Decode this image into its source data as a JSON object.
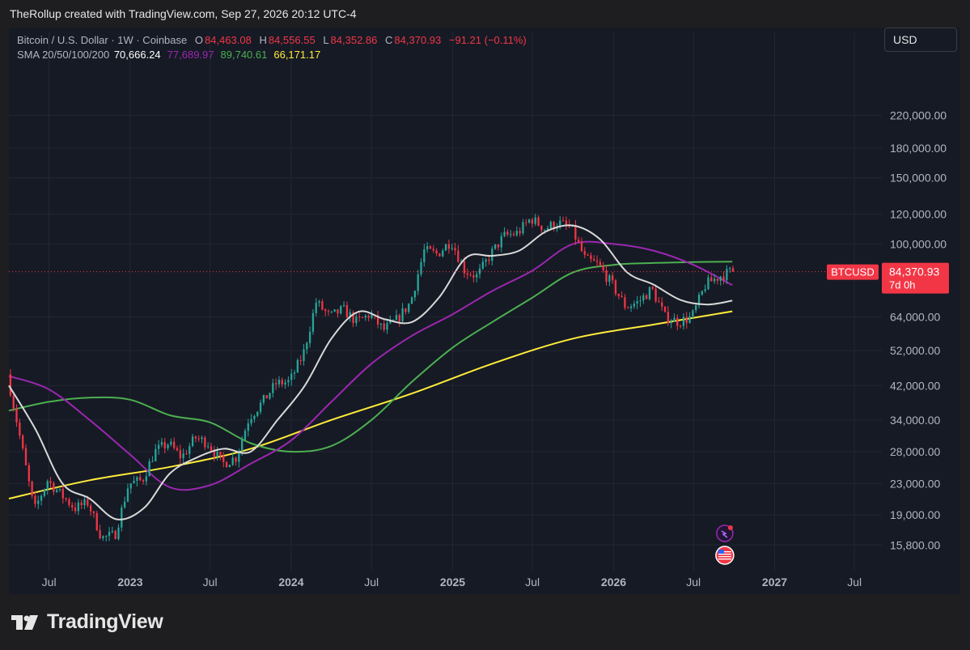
{
  "header": {
    "credit": "TheRollup created with TradingView.com, Sep 27, 2026 20:12 UTC-4"
  },
  "legend": {
    "symbol": "Bitcoin / U.S. Dollar · 1W · Coinbase",
    "o_label": "O",
    "o_value": "84,463.08",
    "h_label": "H",
    "h_value": "84,556.55",
    "l_label": "L",
    "l_value": "84,352.86",
    "c_label": "C",
    "c_value": "84,370.93",
    "change": "−91.21 (−0.11%)",
    "sma_label": "SMA 20/50/100/200",
    "sma20": "70,666.24",
    "sma50": "77,689.97",
    "sma100": "89,740.61",
    "sma200": "66,171.17"
  },
  "currency_button": "USD",
  "price_tag": {
    "symbol": "BTCUSD",
    "price": "84,370.93",
    "countdown": "7d 0h"
  },
  "brand": "TradingView",
  "colors": {
    "up": "#26a69a",
    "down": "#f23645",
    "sma20": "#d9d9d9",
    "sma50": "#9c27b0",
    "sma100": "#4caf50",
    "sma200": "#ffeb3b",
    "background": "#161a25"
  },
  "chart_data": {
    "type": "line",
    "scale": "log",
    "y_ticks": [
      "220,000.00",
      "180,000.00",
      "150,000.00",
      "120,000.00",
      "100,000.00",
      "64,000.00",
      "52,000.00",
      "42,000.00",
      "34,000.00",
      "28,000.00",
      "23,000.00",
      "19,000.00",
      "15,800.00"
    ],
    "y_tick_values": [
      220000,
      180000,
      150000,
      120000,
      100000,
      64000,
      52000,
      42000,
      34000,
      28000,
      23000,
      19000,
      15800
    ],
    "ylim": [
      13500,
      300000
    ],
    "x_ticks": [
      {
        "label": "Jul",
        "date": "2022-07-01",
        "bold": false
      },
      {
        "label": "2023",
        "date": "2023-01-01",
        "bold": true
      },
      {
        "label": "Jul",
        "date": "2023-07-01",
        "bold": false
      },
      {
        "label": "2024",
        "date": "2024-01-01",
        "bold": true
      },
      {
        "label": "Jul",
        "date": "2024-07-01",
        "bold": false
      },
      {
        "label": "2025",
        "date": "2025-01-01",
        "bold": true
      },
      {
        "label": "Jul",
        "date": "2025-07-01",
        "bold": false
      },
      {
        "label": "2026",
        "date": "2026-01-01",
        "bold": true
      },
      {
        "label": "Jul",
        "date": "2026-07-01",
        "bold": false
      },
      {
        "label": "2027",
        "date": "2027-01-01",
        "bold": true
      },
      {
        "label": "Jul",
        "date": "2027-07-01",
        "bold": false
      }
    ],
    "xlim": [
      "2022-04-01",
      "2027-09-01"
    ],
    "price_path": [
      [
        "2022-04-01",
        45000
      ],
      [
        "2022-05-01",
        30000
      ],
      [
        "2022-06-01",
        19500
      ],
      [
        "2022-07-01",
        23500
      ],
      [
        "2022-08-01",
        21500
      ],
      [
        "2022-09-01",
        19800
      ],
      [
        "2022-10-01",
        20500
      ],
      [
        "2022-11-01",
        16500
      ],
      [
        "2022-12-01",
        16800
      ],
      [
        "2023-01-01",
        23000
      ],
      [
        "2023-02-01",
        23500
      ],
      [
        "2023-03-01",
        28000
      ],
      [
        "2023-04-01",
        29500
      ],
      [
        "2023-05-01",
        27000
      ],
      [
        "2023-06-01",
        30500
      ],
      [
        "2023-07-01",
        29500
      ],
      [
        "2023-08-01",
        26000
      ],
      [
        "2023-09-01",
        27000
      ],
      [
        "2023-10-01",
        34500
      ],
      [
        "2023-11-01",
        38000
      ],
      [
        "2023-12-01",
        42500
      ],
      [
        "2024-01-01",
        43000
      ],
      [
        "2024-02-01",
        51000
      ],
      [
        "2024-03-01",
        70000
      ],
      [
        "2024-04-01",
        64000
      ],
      [
        "2024-05-01",
        67000
      ],
      [
        "2024-06-01",
        62000
      ],
      [
        "2024-07-01",
        65000
      ],
      [
        "2024-08-01",
        59000
      ],
      [
        "2024-09-01",
        63000
      ],
      [
        "2024-10-01",
        70000
      ],
      [
        "2024-11-01",
        96000
      ],
      [
        "2024-12-01",
        94000
      ],
      [
        "2025-01-01",
        102000
      ],
      [
        "2025-02-01",
        85000
      ],
      [
        "2025-03-01",
        82000
      ],
      [
        "2025-04-01",
        94000
      ],
      [
        "2025-05-01",
        105000
      ],
      [
        "2025-06-01",
        107000
      ],
      [
        "2025-07-01",
        117000
      ],
      [
        "2025-08-01",
        110000
      ],
      [
        "2025-09-01",
        114000
      ],
      [
        "2025-10-01",
        110000
      ],
      [
        "2025-11-01",
        91000
      ],
      [
        "2025-12-01",
        88000
      ],
      [
        "2026-01-01",
        78000
      ],
      [
        "2026-02-01",
        68000
      ],
      [
        "2026-03-01",
        70000
      ],
      [
        "2026-04-01",
        76000
      ],
      [
        "2026-05-01",
        64000
      ],
      [
        "2026-06-01",
        62000
      ],
      [
        "2026-07-01",
        64000
      ],
      [
        "2026-08-01",
        78000
      ],
      [
        "2026-09-01",
        82000
      ],
      [
        "2026-09-27",
        84370.93
      ]
    ],
    "series": [
      {
        "name": "SMA 20",
        "color": "#d9d9d9",
        "points": [
          [
            "2022-04-01",
            42000
          ],
          [
            "2022-06-01",
            32000
          ],
          [
            "2022-08-01",
            23000
          ],
          [
            "2022-10-01",
            21000
          ],
          [
            "2022-12-01",
            18500
          ],
          [
            "2023-02-01",
            19800
          ],
          [
            "2023-04-01",
            24500
          ],
          [
            "2023-06-01",
            27000
          ],
          [
            "2023-08-01",
            28500
          ],
          [
            "2023-10-01",
            28000
          ],
          [
            "2023-12-01",
            34000
          ],
          [
            "2024-02-01",
            42000
          ],
          [
            "2024-04-01",
            56000
          ],
          [
            "2024-06-01",
            66000
          ],
          [
            "2024-08-01",
            63000
          ],
          [
            "2024-10-01",
            62000
          ],
          [
            "2024-12-01",
            72000
          ],
          [
            "2025-02-01",
            92000
          ],
          [
            "2025-04-01",
            93000
          ],
          [
            "2025-06-01",
            96000
          ],
          [
            "2025-08-01",
            108000
          ],
          [
            "2025-10-01",
            112000
          ],
          [
            "2025-12-01",
            103000
          ],
          [
            "2026-02-01",
            84000
          ],
          [
            "2026-04-01",
            78000
          ],
          [
            "2026-06-01",
            71000
          ],
          [
            "2026-08-01",
            69000
          ],
          [
            "2026-09-27",
            70666
          ]
        ]
      },
      {
        "name": "SMA 50",
        "color": "#9c27b0",
        "points": [
          [
            "2022-04-01",
            44500
          ],
          [
            "2022-07-01",
            41000
          ],
          [
            "2022-10-01",
            34000
          ],
          [
            "2023-01-01",
            27500
          ],
          [
            "2023-04-01",
            22500
          ],
          [
            "2023-07-01",
            22800
          ],
          [
            "2023-10-01",
            26000
          ],
          [
            "2024-01-01",
            30000
          ],
          [
            "2024-04-01",
            38000
          ],
          [
            "2024-07-01",
            48000
          ],
          [
            "2024-10-01",
            57000
          ],
          [
            "2025-01-01",
            65000
          ],
          [
            "2025-04-01",
            75000
          ],
          [
            "2025-07-01",
            85000
          ],
          [
            "2025-10-01",
            100000
          ],
          [
            "2026-01-01",
            100000
          ],
          [
            "2026-04-01",
            96000
          ],
          [
            "2026-07-01",
            88000
          ],
          [
            "2026-09-27",
            77690
          ]
        ]
      },
      {
        "name": "SMA 100",
        "color": "#4caf50",
        "points": [
          [
            "2022-04-01",
            36000
          ],
          [
            "2022-07-01",
            38000
          ],
          [
            "2022-10-01",
            39000
          ],
          [
            "2023-01-01",
            38500
          ],
          [
            "2023-04-01",
            35000
          ],
          [
            "2023-07-01",
            33500
          ],
          [
            "2023-10-01",
            29500
          ],
          [
            "2024-01-01",
            28000
          ],
          [
            "2024-04-01",
            29000
          ],
          [
            "2024-07-01",
            34000
          ],
          [
            "2024-10-01",
            43000
          ],
          [
            "2025-01-01",
            53000
          ],
          [
            "2025-04-01",
            62000
          ],
          [
            "2025-07-01",
            72000
          ],
          [
            "2025-10-01",
            84000
          ],
          [
            "2026-01-01",
            88000
          ],
          [
            "2026-04-01",
            89000
          ],
          [
            "2026-07-01",
            89500
          ],
          [
            "2026-09-27",
            89741
          ]
        ]
      },
      {
        "name": "SMA 200",
        "color": "#ffeb3b",
        "points": [
          [
            "2022-04-01",
            21000
          ],
          [
            "2022-10-01",
            23500
          ],
          [
            "2023-04-01",
            25500
          ],
          [
            "2023-10-01",
            28500
          ],
          [
            "2024-04-01",
            34000
          ],
          [
            "2024-10-01",
            40000
          ],
          [
            "2025-04-01",
            48000
          ],
          [
            "2025-10-01",
            56000
          ],
          [
            "2026-04-01",
            61000
          ],
          [
            "2026-09-27",
            66171
          ]
        ]
      }
    ]
  }
}
